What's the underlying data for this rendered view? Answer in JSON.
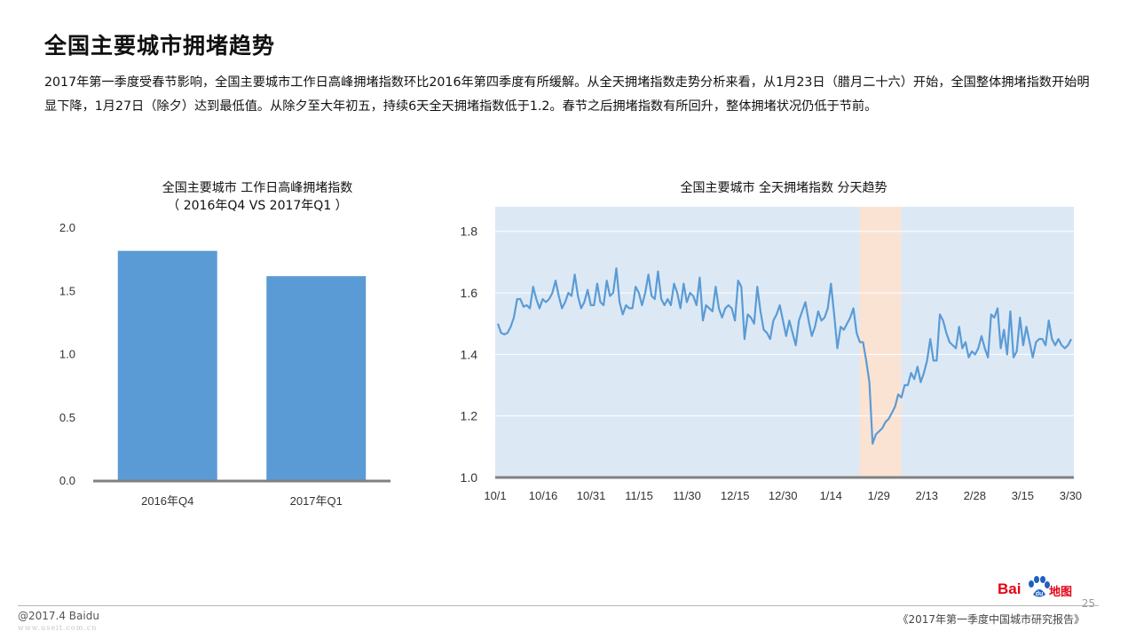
{
  "page": {
    "title": "全国主要城市拥堵趋势",
    "description": "2017年第一季度受春节影响，全国主要城市工作日高峰拥堵指数环比2016年第四季度有所缓解。从全天拥堵指数走势分析来看，从1月23日（腊月二十六）开始，全国整体拥堵指数开始明显下降，1月27日（除夕）达到最低值。从除夕至大年初五，持续6天全天拥堵指数低于1.2。春节之后拥堵指数有所回升，整体拥堵状况仍低于节前。"
  },
  "footer": {
    "copyright": "@2017.4 Baidu",
    "watermark": "www.useit.com.cn",
    "report_name": "《2017年第一季度中国城市研究报告》",
    "page_number": "25",
    "logo_text_left": "Bai",
    "logo_text_right": "地图"
  },
  "colors": {
    "bar": "#5b9bd5",
    "line": "#5b9bd5",
    "plot_bg": "#dce9f5",
    "highlight": "#fbe3d4",
    "axis": "#808080",
    "logo_red": "#e60012"
  },
  "chart_data": [
    {
      "type": "bar",
      "title": "全国主要城市 工作日高峰拥堵指数",
      "subtitle": "（ 2016年Q4 VS 2017年Q1 ）",
      "categories": [
        "2016年Q4",
        "2017年Q1"
      ],
      "values": [
        1.82,
        1.62
      ],
      "ylim": [
        0,
        2.0
      ],
      "yticks": [
        0.0,
        0.5,
        1.0,
        1.5,
        2.0
      ],
      "ytick_labels": [
        "0.0",
        "0.5",
        "1.0",
        "1.5",
        "2.0"
      ],
      "grid": false
    },
    {
      "type": "line",
      "title": "全国主要城市 全天拥堵指数 分天趋势",
      "x_start": "2016-10-01",
      "x_end": "2017-03-31",
      "xtick_labels": [
        "10/1",
        "10/16",
        "10/31",
        "11/15",
        "11/30",
        "12/15",
        "12/30",
        "1/14",
        "1/29",
        "2/13",
        "2/28",
        "3/15",
        "3/30"
      ],
      "yticks": [
        1.0,
        1.2,
        1.4,
        1.6,
        1.8
      ],
      "ytick_labels": [
        "1.0",
        "1.2",
        "1.4",
        "1.6",
        "1.8"
      ],
      "ylim": [
        1.0,
        1.88
      ],
      "highlight_range": [
        "2017-01-23",
        "2017-02-05"
      ],
      "grid": true,
      "values": [
        1.5,
        1.47,
        1.465,
        1.47,
        1.49,
        1.52,
        1.58,
        1.58,
        1.555,
        1.56,
        1.55,
        1.62,
        1.58,
        1.55,
        1.58,
        1.57,
        1.58,
        1.6,
        1.64,
        1.59,
        1.55,
        1.57,
        1.6,
        1.59,
        1.66,
        1.59,
        1.55,
        1.57,
        1.61,
        1.56,
        1.56,
        1.63,
        1.57,
        1.56,
        1.64,
        1.59,
        1.6,
        1.68,
        1.57,
        1.53,
        1.56,
        1.55,
        1.55,
        1.62,
        1.6,
        1.56,
        1.6,
        1.66,
        1.59,
        1.58,
        1.67,
        1.58,
        1.56,
        1.58,
        1.56,
        1.63,
        1.6,
        1.55,
        1.63,
        1.57,
        1.6,
        1.59,
        1.56,
        1.65,
        1.51,
        1.56,
        1.55,
        1.54,
        1.62,
        1.55,
        1.52,
        1.55,
        1.56,
        1.55,
        1.51,
        1.64,
        1.62,
        1.45,
        1.53,
        1.52,
        1.5,
        1.62,
        1.54,
        1.48,
        1.47,
        1.45,
        1.51,
        1.53,
        1.56,
        1.51,
        1.46,
        1.51,
        1.47,
        1.43,
        1.51,
        1.54,
        1.57,
        1.51,
        1.46,
        1.49,
        1.54,
        1.51,
        1.52,
        1.55,
        1.63,
        1.53,
        1.42,
        1.49,
        1.48,
        1.5,
        1.52,
        1.55,
        1.47,
        1.44,
        1.44,
        1.38,
        1.31,
        1.11,
        1.14,
        1.15,
        1.16,
        1.18,
        1.19,
        1.21,
        1.23,
        1.27,
        1.26,
        1.3,
        1.3,
        1.34,
        1.32,
        1.36,
        1.31,
        1.34,
        1.38,
        1.45,
        1.38,
        1.38,
        1.53,
        1.51,
        1.47,
        1.44,
        1.43,
        1.42,
        1.49,
        1.42,
        1.44,
        1.39,
        1.41,
        1.4,
        1.42,
        1.46,
        1.42,
        1.39,
        1.53,
        1.52,
        1.55,
        1.42,
        1.48,
        1.4,
        1.54,
        1.39,
        1.41,
        1.52,
        1.43,
        1.49,
        1.44,
        1.39,
        1.44,
        1.45,
        1.45,
        1.43,
        1.51,
        1.45,
        1.43,
        1.45,
        1.43,
        1.42,
        1.43,
        1.45
      ]
    }
  ]
}
